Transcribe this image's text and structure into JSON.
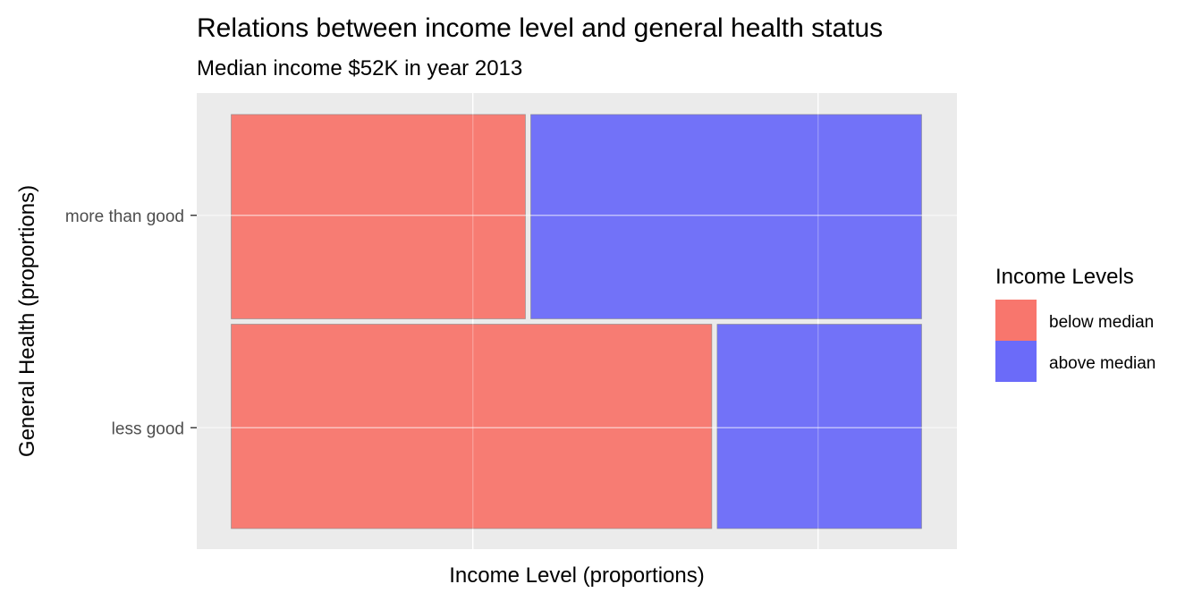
{
  "chart_data": {
    "type": "mosaic",
    "title": "Relations between income level and general health status",
    "subtitle": "Median income $52K in year 2013",
    "xlabel": "Income Level (proportions)",
    "ylabel": "General Health (proportions)",
    "grid": true,
    "legend": {
      "title": "Income Levels",
      "placement": "right",
      "entries": [
        {
          "label": "below median",
          "color": "#F8766D"
        },
        {
          "label": "above median",
          "color": "#6B6BF9"
        }
      ]
    },
    "categories": [
      "less good",
      "more than good"
    ],
    "category_share": [
      0.5,
      0.5
    ],
    "series": [
      {
        "name": "below median",
        "color": "#F8766D",
        "values": [
          0.7,
          0.43
        ]
      },
      {
        "name": "above median",
        "color": "#6B6BF9",
        "values": [
          0.3,
          0.57
        ]
      }
    ],
    "background": "#EBEBEB",
    "gridline_color": "#FFFFFF"
  }
}
